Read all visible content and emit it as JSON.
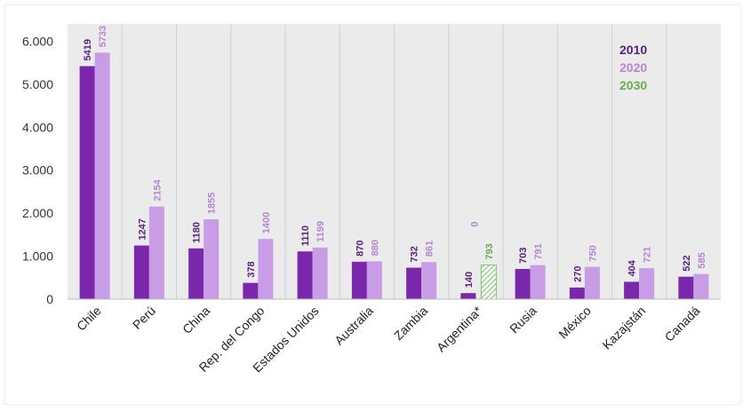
{
  "chart_data": {
    "type": "bar",
    "categories": [
      "Chile",
      "Perú",
      "China",
      "Rep. del Congo",
      "Estados Unidos",
      "Australia",
      "Zambia",
      "Argentina*",
      "Rusia",
      "México",
      "Kazajstán",
      "Canadá"
    ],
    "series": [
      {
        "name": "2010",
        "color": "#7b27ab",
        "values": [
          5419,
          1247,
          1180,
          378,
          1110,
          870,
          732,
          140,
          703,
          270,
          404,
          522
        ]
      },
      {
        "name": "2020",
        "color": "#c99de6",
        "values": [
          5733,
          2154,
          1855,
          1400,
          1199,
          880,
          861,
          0,
          791,
          750,
          721,
          585
        ]
      },
      {
        "name": "2030",
        "color": "#7cc36b",
        "values": [
          null,
          null,
          null,
          null,
          null,
          null,
          null,
          793,
          null,
          null,
          null,
          null
        ]
      }
    ],
    "label_colors": {
      "2010": "#5a1e82",
      "2020": "#b585d8",
      "2030": "#66b04f"
    },
    "y_ticks": [
      "0",
      "1.000",
      "2.000",
      "3.000",
      "4.000",
      "5.000",
      "6.000"
    ],
    "y_tick_values": [
      0,
      1000,
      2000,
      3000,
      4000,
      5000,
      6000
    ],
    "ylim": [
      0,
      6400
    ],
    "legend": [
      "2010",
      "2020",
      "2030"
    ],
    "legend_position": "top-right",
    "colors": {
      "panel_background": "#ebebeb",
      "grid": "#d2d2d2",
      "hatch": "#7cc36b"
    }
  }
}
